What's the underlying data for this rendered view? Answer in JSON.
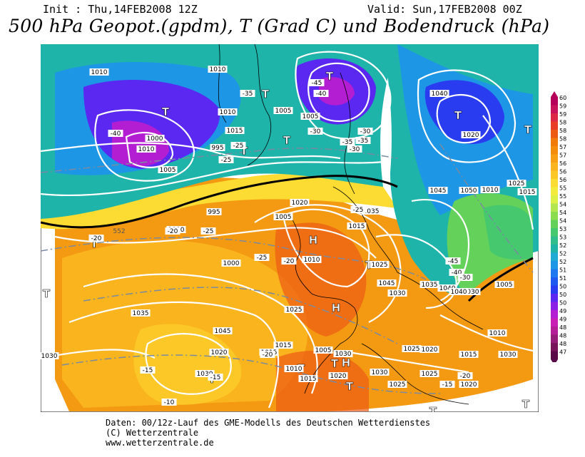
{
  "header": {
    "init": "Init : Thu,14FEB2008 12Z",
    "valid": "Valid: Sun,17FEB2008 00Z",
    "title": "500 hPa Geopot.(gpdm), T (Grad C) und Bodendruck (hPa)"
  },
  "colorbar": {
    "levels": [
      "600",
      "596",
      "592",
      "588",
      "584",
      "580",
      "576",
      "572",
      "568",
      "564",
      "560",
      "556",
      "552",
      "548",
      "544",
      "540",
      "536",
      "532",
      "528",
      "524",
      "520",
      "516",
      "512",
      "508",
      "504",
      "500",
      "496",
      "492",
      "488",
      "484",
      "480",
      "476"
    ],
    "colors": [
      "#b4005a",
      "#c8145a",
      "#dc2846",
      "#e83c28",
      "#ec5a14",
      "#f07a0a",
      "#f48c0c",
      "#f8a014",
      "#fab41e",
      "#fcc828",
      "#fcdc32",
      "#f4ec3c",
      "#dcf046",
      "#b4e650",
      "#8cdc50",
      "#64d25a",
      "#46c86e",
      "#32be8c",
      "#1eb4aa",
      "#1eaad2",
      "#1e96e6",
      "#1e78f0",
      "#1e5af0",
      "#2a3cf0",
      "#5a28f0",
      "#8c1ee6",
      "#b41ed2",
      "#c81eb4",
      "#b41e96",
      "#961e78",
      "#78145a",
      "#5a0a46"
    ]
  },
  "map": {
    "highs": [
      "H",
      "H",
      "H"
    ],
    "lows": [
      "T",
      "T",
      "T",
      "T",
      "T",
      "T",
      "T",
      "T",
      "T",
      "T",
      "T",
      "T",
      "T",
      "T",
      "T",
      "T"
    ],
    "pressure_labels": [
      "1010",
      "1010",
      "1005",
      "1010",
      "1005",
      "1015",
      "1010",
      "995",
      "1000",
      "1005",
      "1000",
      "995",
      "1000",
      "1005",
      "1010",
      "1015",
      "1025",
      "1030",
      "1035",
      "1040",
      "1045",
      "1050",
      "1020",
      "1025",
      "1010",
      "1015",
      "1020",
      "1020",
      "1030",
      "1025",
      "1015",
      "1005",
      "1010",
      "1015",
      "1020",
      "1025",
      "1020",
      "1015",
      "1010",
      "1005",
      "1030",
      "1040",
      "1045",
      "1035",
      "1040",
      "1030",
      "1045",
      "1035",
      "1030",
      "1030",
      "1025",
      "1020",
      "1025",
      "1030",
      "1020",
      "1015"
    ],
    "temperature_labels": [
      "-40",
      "-45",
      "-35",
      "-40",
      "-30",
      "-25",
      "-35",
      "-30",
      "-20",
      "-25",
      "-20",
      "-25",
      "-20",
      "-15",
      "-10",
      "-15",
      "-20",
      "-15",
      "-20",
      "-45",
      "-40",
      "-30",
      "-35",
      "-25",
      "-25",
      "-30"
    ],
    "isoline_label_552": "552"
  },
  "footer": {
    "line1": "Daten: 00/12z-Lauf des GME-Modells des Deutschen Wetterdienstes",
    "line2": "(C) Wetterzentrale",
    "line3": "www.wetterzentrale.de"
  }
}
